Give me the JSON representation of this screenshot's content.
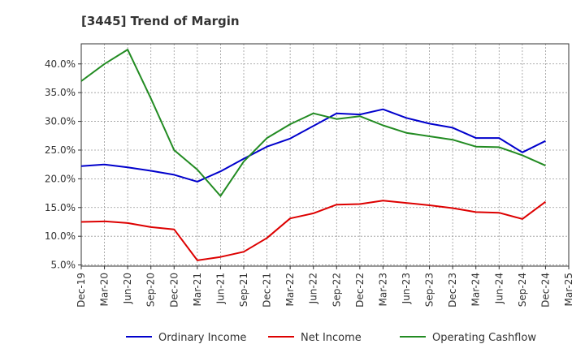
{
  "chart_data": {
    "type": "line",
    "title": "[3445]  Trend of Margin",
    "xlabel": "",
    "ylabel": "",
    "x": [
      "Dec-19",
      "Mar-20",
      "Jun-20",
      "Sep-20",
      "Dec-20",
      "Mar-21",
      "Jun-21",
      "Sep-21",
      "Dec-21",
      "Mar-22",
      "Jun-22",
      "Sep-22",
      "Dec-22",
      "Mar-23",
      "Jun-23",
      "Sep-23",
      "Dec-23",
      "Mar-24",
      "Jun-24",
      "Sep-24",
      "Dec-24",
      "Mar-25"
    ],
    "y_ticks": [
      "5.0%",
      "10.0%",
      "15.0%",
      "20.0%",
      "25.0%",
      "30.0%",
      "35.0%",
      "40.0%"
    ],
    "ylim": [
      4.8,
      43.5
    ],
    "grid": true,
    "legend_position": "bottom",
    "series": [
      {
        "name": "Ordinary Income",
        "color": "#0000cc",
        "values": [
          22.2,
          22.5,
          22.0,
          21.4,
          20.7,
          19.5,
          21.3,
          23.5,
          25.6,
          27.0,
          29.2,
          31.4,
          31.2,
          32.1,
          30.6,
          29.6,
          28.9,
          27.1,
          27.1,
          24.6,
          26.6,
          null
        ]
      },
      {
        "name": "Net Income",
        "color": "#dd0000",
        "values": [
          12.5,
          12.6,
          12.3,
          11.6,
          11.2,
          5.8,
          6.4,
          7.3,
          9.7,
          13.1,
          14.0,
          15.5,
          15.6,
          16.2,
          15.8,
          15.4,
          14.9,
          14.2,
          14.1,
          13.0,
          16.0,
          null
        ]
      },
      {
        "name": "Operating Cashflow",
        "color": "#228b22",
        "values": [
          37.0,
          40.0,
          42.5,
          34.0,
          25.0,
          21.6,
          17.0,
          23.0,
          27.1,
          29.5,
          31.4,
          30.4,
          30.9,
          29.3,
          28.0,
          27.4,
          26.8,
          25.6,
          25.5,
          24.1,
          22.3,
          null
        ]
      }
    ]
  }
}
